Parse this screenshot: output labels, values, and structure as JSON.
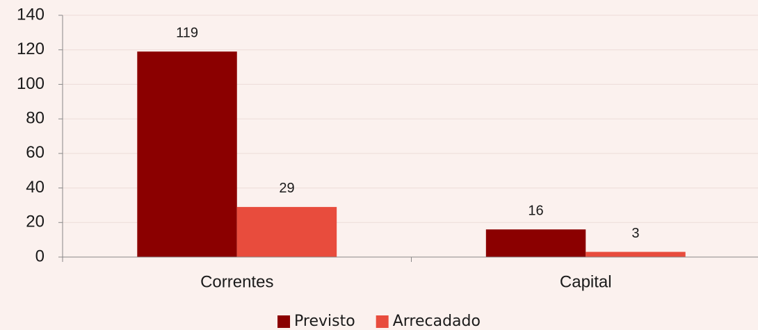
{
  "chart_data": {
    "type": "bar",
    "categories": [
      "Correntes",
      "Capital"
    ],
    "series": [
      {
        "name": "Previsto",
        "color": "#8b0000",
        "values": [
          119,
          16
        ]
      },
      {
        "name": "Arrecadado",
        "color": "#e84c3d",
        "values": [
          29,
          3
        ]
      }
    ],
    "ylim": [
      0,
      140
    ],
    "yticks": [
      0,
      20,
      40,
      60,
      80,
      100,
      120,
      140
    ],
    "grid": true,
    "legend": "bottom"
  }
}
